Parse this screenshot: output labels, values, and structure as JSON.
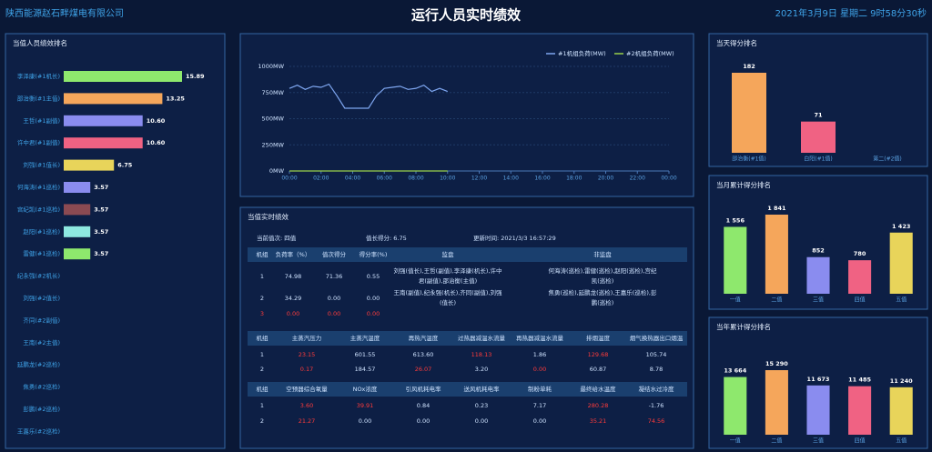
{
  "header": {
    "company": "陕西能源赵石畔煤电有限公司",
    "title": "运行人员实时绩效",
    "datetime": "2021年3月9日  星期二  9时58分30秒"
  },
  "chart_data": [
    {
      "type": "hbar",
      "title": "当值人员绩效排名",
      "categories": [
        "李泽康(#1机长)",
        "邵治衡(#1主值)",
        "王哲(#1副值)",
        "许中君(#1副值)",
        "刘强(#1值长)",
        "何海涛(#1巡检)",
        "宫纪凯(#1巡检)",
        "赵阳(#1巡检)",
        "雷健(#1巡检)",
        "纪永强(#2机长)",
        "刘强(#2值长)",
        "齐同(#2副值)",
        "王南(#2主值)",
        "延鹏龙(#2巡检)",
        "焦勇(#2巡检)",
        "彭鹏(#2巡检)",
        "王嘉乐(#2巡检)"
      ],
      "values": [
        15.89,
        13.25,
        10.6,
        10.6,
        6.75,
        3.57,
        3.57,
        3.57,
        3.57,
        null,
        null,
        null,
        null,
        null,
        null,
        null,
        null
      ],
      "value_labels": [
        "15.89",
        "13.25",
        "10.60",
        "10.60",
        "6.75",
        "3.57",
        "3.57",
        "3.57",
        "3.57",
        null,
        null,
        null,
        null,
        null,
        null,
        null,
        null
      ],
      "colors": [
        "#8ee86d",
        "#f5a65b",
        "#8a8cef",
        "#f06283",
        "#e8d45a",
        "#8a8cef",
        "#8b4a52",
        "#8ee8e0",
        "#8ee86d",
        null,
        null,
        null,
        null,
        null,
        null,
        null,
        null
      ]
    },
    {
      "type": "line",
      "x": [
        0,
        0.5,
        1,
        1.5,
        2,
        2.5,
        3,
        3.5,
        4,
        4.5,
        5,
        5.5,
        6,
        6.5,
        7,
        7.5,
        8,
        8.5,
        9,
        9.5,
        10
      ],
      "series": [
        {
          "name": "#1机组负荷(MW)",
          "color": "#7ea6f0",
          "values": [
            790,
            820,
            780,
            810,
            800,
            830,
            720,
            600,
            600,
            600,
            600,
            720,
            790,
            800,
            810,
            780,
            790,
            820,
            760,
            790,
            760
          ]
        },
        {
          "name": "#2机组负荷(MW)",
          "color": "#9ad04a",
          "values": [
            0,
            0,
            0,
            0,
            0,
            0,
            0,
            0,
            0,
            0,
            0,
            0,
            0,
            0,
            0,
            0,
            0,
            0,
            0,
            0,
            0
          ]
        }
      ],
      "xlim": [
        0,
        24
      ],
      "xticks": [
        {
          "value": 0,
          "label": "00:00"
        },
        {
          "value": 2,
          "label": "02:00"
        },
        {
          "value": 4,
          "label": "04:00"
        },
        {
          "value": 6,
          "label": "06:00"
        },
        {
          "value": 8,
          "label": "08:00"
        },
        {
          "value": 10,
          "label": "10:00"
        },
        {
          "value": 12,
          "label": "12:00"
        },
        {
          "value": 14,
          "label": "14:00"
        },
        {
          "value": 16,
          "label": "16:00"
        },
        {
          "value": 18,
          "label": "18:00"
        },
        {
          "value": 20,
          "label": "20:00"
        },
        {
          "value": 22,
          "label": "22:00"
        },
        {
          "value": 24,
          "label": "00:00"
        }
      ],
      "ylim": [
        0,
        1000
      ],
      "yticks": [
        {
          "value": 0,
          "label": "0MW"
        },
        {
          "value": 250,
          "label": "250MW"
        },
        {
          "value": 500,
          "label": "500MW"
        },
        {
          "value": 750,
          "label": "750MW"
        },
        {
          "value": 1000,
          "label": "1000MW"
        }
      ],
      "grid": true
    },
    {
      "type": "bar",
      "title": "当天得分排名",
      "categories": [
        "邵治衡(#1值)",
        "白阳(#1值)",
        "第二(#2值)"
      ],
      "values": [
        182,
        71,
        null
      ],
      "colors": [
        "#f5a65b",
        "#f06283",
        null
      ]
    },
    {
      "type": "bar",
      "title": "当月累计得分排名",
      "categories": [
        "一值",
        "二值",
        "三值",
        "四值",
        "五值"
      ],
      "values": [
        1556,
        1841,
        852,
        780,
        1423
      ],
      "value_labels": [
        "1 556",
        "1 841",
        "852",
        "780",
        "1 423"
      ],
      "colors": [
        "#8ee86d",
        "#f5a65b",
        "#8a8cef",
        "#f06283",
        "#e8d45a"
      ]
    },
    {
      "type": "bar",
      "title": "当年累计得分排名",
      "categories": [
        "一值",
        "二值",
        "三值",
        "四值",
        "五值"
      ],
      "values": [
        13664,
        15290,
        11673,
        11485,
        11240
      ],
      "value_labels": [
        "13 664",
        "15 290",
        "11 673",
        "11 485",
        "11 240"
      ],
      "colors": [
        "#8ee86d",
        "#f5a65b",
        "#8a8cef",
        "#f06283",
        "#e8d45a"
      ]
    }
  ],
  "realtime": {
    "title": "当值实时绩效",
    "info": [
      "当前值次:  四值",
      "值长得分:  6.75",
      "更新时间:  2021/3/3 16:57:29"
    ],
    "tables": [
      {
        "headers": [
          "机组",
          "负荷率（%）",
          "值次得分",
          "得分率(%)",
          "监盘",
          "非监盘"
        ],
        "rows": [
          [
            "1",
            "74.98",
            "71.36",
            "0.55",
            "刘强(值长),王哲(副值),李泽康(机长),许中君(副值),邵治衡(主值)",
            "何海涛(巡检),雷健(巡检),赵阳(巡检),宫纪凯(巡检)"
          ],
          [
            "2",
            "34.29",
            "0.00",
            "0.00",
            "王南(副值),纪永强(机长),齐同(副值),刘强(值长)",
            "焦勇(巡检),延鹏龙(巡检),王嘉乐(巡检),彭鹏(巡检)"
          ],
          [
            "3",
            "0.00",
            "0.00",
            "0.00"
          ]
        ]
      },
      {
        "headers": [
          "机组",
          "主蒸汽压力",
          "主蒸汽温度",
          "再热汽温度",
          "过热器减温水流量",
          "再热器减温水流量",
          "排烟温度",
          "烟气换热器出口烟温"
        ],
        "rows": [
          [
            "1",
            "23.15",
            "601.55",
            "613.60",
            "118.13",
            "1.86",
            "129.68",
            "105.74"
          ],
          [
            "2",
            "0.17",
            "184.57",
            "26.07",
            "3.20",
            "0.00",
            "60.87",
            "8.78"
          ]
        ]
      },
      {
        "headers": [
          "机组",
          "空预器综合氧量",
          "NOx浓度",
          "引风机耗电率",
          "送风机耗电率",
          "制粉单耗",
          "最终给水温度",
          "凝结水过冷度"
        ],
        "rows": [
          [
            "1",
            "3.60",
            "39.91",
            "0.84",
            "0.23",
            "7.17",
            "280.28",
            "-1.76"
          ],
          [
            "2",
            "21.27",
            "0.00",
            "0.00",
            "0.00",
            "0.00",
            "35.21",
            "74.56"
          ]
        ]
      }
    ]
  }
}
